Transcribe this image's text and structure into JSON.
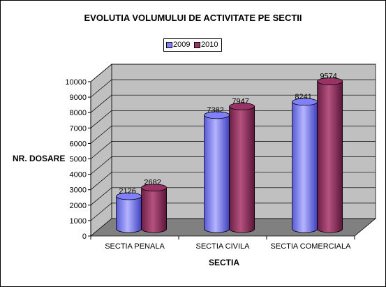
{
  "chart_data": {
    "type": "bar",
    "title": "EVOLUTIA VOLUMULUI DE ACTIVITATE PE SECTII",
    "xlabel": "SECTIA",
    "ylabel": "NR. DOSARE",
    "categories": [
      "SECTIA PENALA",
      "SECTIA CIVILA",
      "SECTIA COMERCIALA"
    ],
    "series": [
      {
        "name": "2009",
        "values": [
          2126,
          7382,
          8241
        ],
        "color": "#8080ff"
      },
      {
        "name": "2010",
        "values": [
          2682,
          7947,
          9574
        ],
        "color": "#993366"
      }
    ],
    "data_labels": [
      [
        "2126",
        "7382",
        "8241"
      ],
      [
        "2682",
        "7947",
        "9574"
      ]
    ],
    "yticks": [
      "0",
      "1000",
      "2000",
      "3000",
      "4000",
      "5000",
      "6000",
      "7000",
      "8000",
      "9000",
      "10000"
    ],
    "ylim": [
      0,
      10000
    ],
    "grid": true,
    "legend_position": "top",
    "style": "3d-cylinder",
    "wall_color": "#c0c0c0",
    "floor_color": "#808080"
  }
}
